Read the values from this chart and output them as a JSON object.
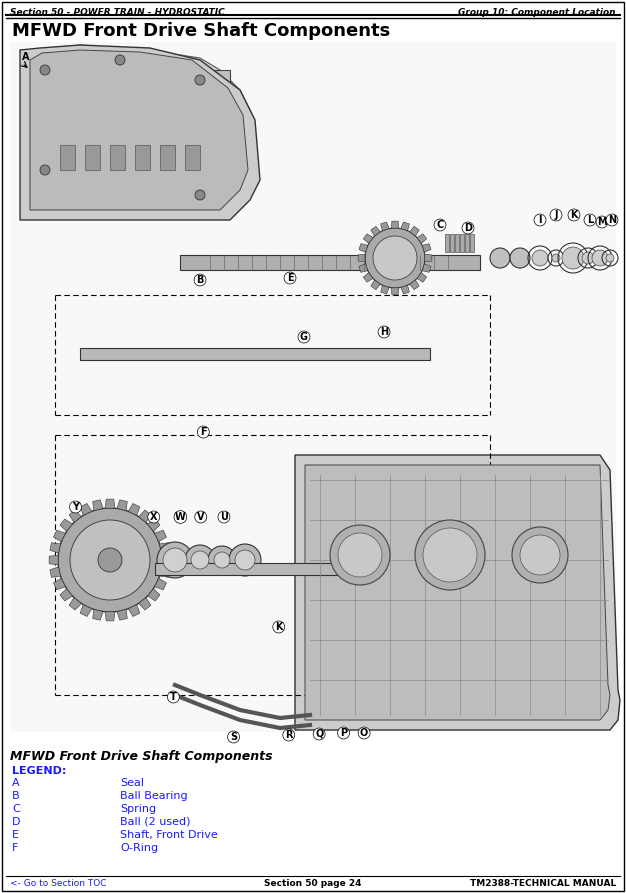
{
  "header_left": "Section 50 - POWER TRAIN - HYDROSTATIC",
  "header_right": "Group 10: Component Location",
  "page_title": "MFWD Front Drive Shaft Components",
  "diagram_title": "MFWD Front Drive Shaft Components",
  "legend_title": "LEGEND:",
  "legend_items": [
    [
      "A",
      "Seal"
    ],
    [
      "B",
      "Ball Bearing"
    ],
    [
      "C",
      "Spring"
    ],
    [
      "D",
      "Ball (2 used)"
    ],
    [
      "E",
      "Shaft, Front Drive"
    ],
    [
      "F",
      "O-Ring"
    ]
  ],
  "footer_left": "<- Go to Section TOC",
  "footer_center": "Section 50 page 24",
  "footer_right": "TM2388-TECHNICAL MANUAL",
  "bg_color": "#ffffff",
  "header_line_color": "#000000",
  "footer_line_color": "#000000",
  "title_color": "#000000",
  "header_text_color": "#000000",
  "legend_label_color": "#1a1aff",
  "legend_title_color": "#1a1aff",
  "footer_left_color": "#1a1aff",
  "footer_center_color": "#000000",
  "footer_right_color": "#000000",
  "diagram_bg": "#f0f0f0",
  "page_width": 6.26,
  "page_height": 8.93
}
